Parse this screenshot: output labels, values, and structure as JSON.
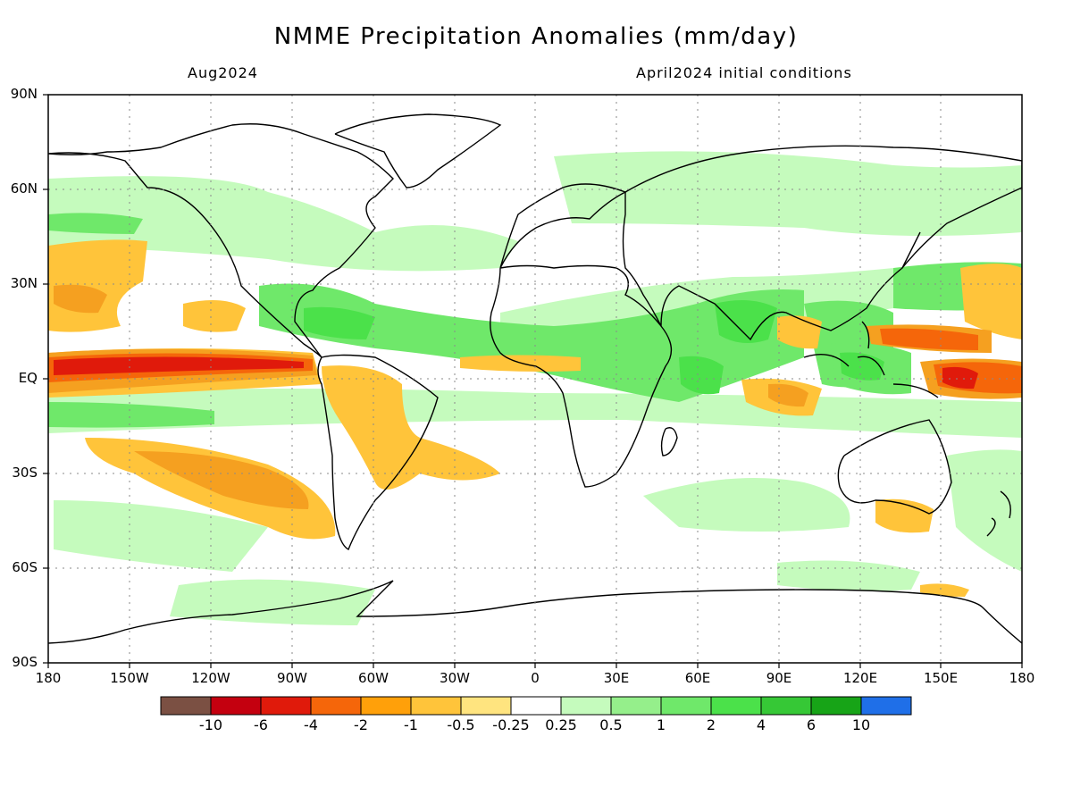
{
  "title": "NMME Precipitation Anomalies (mm/day)",
  "subtitle_left": "Aug2024",
  "subtitle_right": "April2024 initial conditions",
  "map": {
    "projection": "cylindrical equidistant",
    "lon_range": [
      -180,
      180
    ],
    "lat_range": [
      -90,
      90
    ],
    "grid": "dotted",
    "lat_ticks": [
      "90N",
      "60N",
      "30N",
      "EQ",
      "30S",
      "60S",
      "90S"
    ],
    "lon_ticks": [
      "180",
      "150W",
      "120W",
      "90W",
      "60W",
      "30W",
      "0",
      "30E",
      "60E",
      "90E",
      "120E",
      "150E",
      "180"
    ]
  },
  "colorbar": {
    "colors": [
      "#7b5043",
      "#c4000f",
      "#e01a0b",
      "#f5660a",
      "#ffa00a",
      "#ffc43a",
      "#ffe47f",
      "#ffffff",
      "#c5fbbd",
      "#95ef8b",
      "#6fe86a",
      "#4be14a",
      "#36c836",
      "#17a417",
      "#1f6fe8"
    ],
    "labels": [
      "-10",
      "-6",
      "-4",
      "-2",
      "-1",
      "-0.5",
      "-0.25",
      "0.25",
      "0.5",
      "1",
      "2",
      "4",
      "6",
      "10"
    ]
  }
}
